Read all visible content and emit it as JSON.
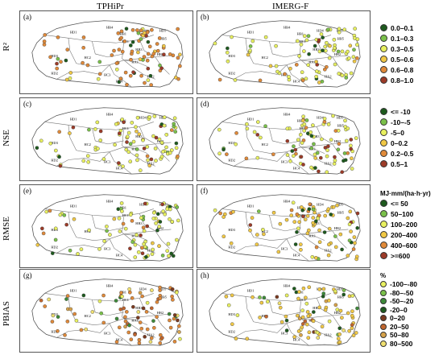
{
  "columns": [
    "TPHiPr",
    "IMERG-F"
  ],
  "rows": [
    {
      "label": "R²",
      "panels": [
        "(a)",
        "(b)"
      ]
    },
    {
      "label": "NSE",
      "panels": [
        "(c)",
        "(d)"
      ]
    },
    {
      "label": "RMSE",
      "panels": [
        "(e)",
        "(f)"
      ]
    },
    {
      "label": "PBIAS",
      "panels": [
        "(g)",
        "(h)"
      ]
    }
  ],
  "region_labels": [
    "HD1",
    "HD3",
    "HD4",
    "HB4",
    "HB1",
    "HC1",
    "HC2",
    "HB3",
    "HD2",
    "HC3",
    "HA1",
    "HB2",
    "HB5",
    "HB6",
    "HC4",
    "HA2",
    "HD5",
    "HB4"
  ],
  "legends": [
    {
      "title": "",
      "items": [
        {
          "label": "0.0–0.1",
          "color": "#1e5a1e"
        },
        {
          "label": "0.1–0.3",
          "color": "#7ac04a"
        },
        {
          "label": "0.3–0.5",
          "color": "#e8f060"
        },
        {
          "label": "0.5–0.6",
          "color": "#f0c846"
        },
        {
          "label": "0.6–0.8",
          "color": "#e08a3a"
        },
        {
          "label": "0.8–1.0",
          "color": "#9c3b28"
        }
      ]
    },
    {
      "title": "",
      "items": [
        {
          "label": "<= -10",
          "color": "#1e5a1e"
        },
        {
          "label": "-10–-5",
          "color": "#7ac04a"
        },
        {
          "label": "-5–0",
          "color": "#e8f060"
        },
        {
          "label": "0–0.2",
          "color": "#f0c846"
        },
        {
          "label": "0.2–0.5",
          "color": "#e08a3a"
        },
        {
          "label": "0.5–1",
          "color": "#9c3b28"
        }
      ]
    },
    {
      "title": "MJ·mm/(ha·h·yr)",
      "items": [
        {
          "label": "<= 50",
          "color": "#1e5a1e"
        },
        {
          "label": "50–100",
          "color": "#7ac04a"
        },
        {
          "label": "100–200",
          "color": "#e8f060"
        },
        {
          "label": "200–400",
          "color": "#f0c846"
        },
        {
          "label": "400–600",
          "color": "#e08a3a"
        },
        {
          "label": ">=600",
          "color": "#9c3b28"
        }
      ]
    },
    {
      "title": "%",
      "items": [
        {
          "label": "-100–-80",
          "color": "#e8f060"
        },
        {
          "label": "-80–-50",
          "color": "#7ac04a"
        },
        {
          "label": "-50–-20",
          "color": "#3e8a3a"
        },
        {
          "label": "-20–0",
          "color": "#1e5a1e"
        },
        {
          "label": "0–20",
          "color": "#7a3a20"
        },
        {
          "label": "20–50",
          "color": "#c0652e"
        },
        {
          "label": "50–80",
          "color": "#d6a24a"
        },
        {
          "label": "80–500",
          "color": "#f0e070"
        }
      ]
    }
  ],
  "dominant_station_colors": {
    "a": "#e08a3a",
    "b": "#e8f060",
    "c": "#e8f060",
    "d": "#e8f060",
    "e": "#e8f060",
    "f": "#f0c846",
    "g": "#e08a3a",
    "h": "#f0c846"
  }
}
